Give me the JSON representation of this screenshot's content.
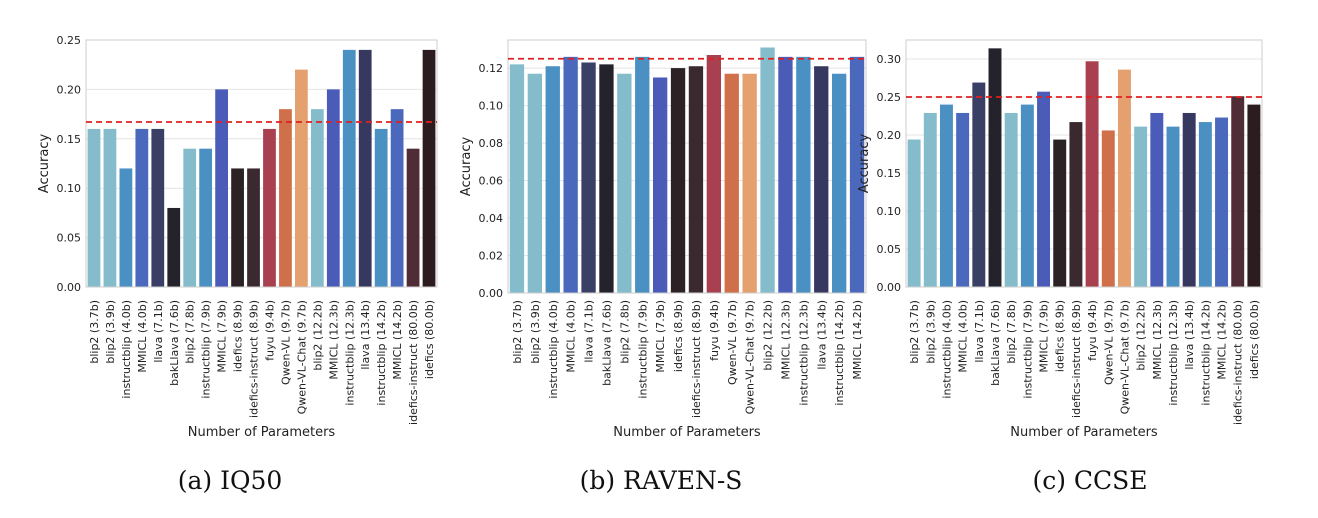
{
  "charts": [
    {
      "caption": "(a) IQ50",
      "type": "bar",
      "xlabel": "Number of Parameters",
      "ylabel": "Accuracy",
      "ylim": [
        0,
        0.25
      ],
      "yticks": [
        "0.00",
        "0.05",
        "0.10",
        "0.15",
        "0.20",
        "0.25"
      ],
      "baseline": 0.167,
      "categories": [
        "blip2 (3.7b)",
        "blip2 (3.9b)",
        "instructblip (4.0b)",
        "MMICL (4.0b)",
        "llava (7.1b)",
        "bakLlava (7.6b)",
        "blip2 (7.8b)",
        "instructblip (7.9b)",
        "MMICL (7.9b)",
        "idefics (8.9b)",
        "idefics-instruct (8.9b)",
        "fuyu (9.4b)",
        "Qwen-VL (9.7b)",
        "Qwen-VL-Chat (9.7b)",
        "blip2 (12.2b)",
        "MMICL (12.3b)",
        "instructblip (12.3b)",
        "llava (13.4b)",
        "instructblip (14.2b)",
        "MMICL (14.2b)",
        "idefics-instruct (80.0b)",
        "idefics (80.0b)"
      ],
      "values": [
        0.16,
        0.16,
        0.12,
        0.16,
        0.16,
        0.08,
        0.14,
        0.14,
        0.2,
        0.12,
        0.12,
        0.16,
        0.18,
        0.22,
        0.18,
        0.2,
        0.24,
        0.24,
        0.16,
        0.18,
        0.14,
        0.24
      ],
      "colors": [
        "#84bccc",
        "#84bccc",
        "#4a90c2",
        "#4a68bc",
        "#3a3f66",
        "#24222a",
        "#84bccc",
        "#4a90c2",
        "#4a5cb8",
        "#2c2226",
        "#3a2a30",
        "#a84050",
        "#d0704a",
        "#e5a070",
        "#84bccc",
        "#4a5cb8",
        "#4a90c2",
        "#363860",
        "#4a90c2",
        "#4a68bc",
        "#502c36",
        "#2c1c20"
      ]
    },
    {
      "caption": "(b) RAVEN-S",
      "type": "bar",
      "xlabel": "Number of Parameters",
      "ylabel": "Accuracy",
      "ylim": [
        0,
        0.135
      ],
      "yticks": [
        "0.00",
        "0.02",
        "0.04",
        "0.06",
        "0.08",
        "0.10",
        "0.12"
      ],
      "baseline": 0.125,
      "categories": [
        "blip2 (3.7b)",
        "blip2 (3.9b)",
        "instructblip (4.0b)",
        "MMICL (4.0b)",
        "llava (7.1b)",
        "bakLlava (7.6b)",
        "blip2 (7.8b)",
        "instructblip (7.9b)",
        "MMICL (7.9b)",
        "idefics (8.9b)",
        "idefics-instruct (8.9b)",
        "fuyu (9.4b)",
        "Qwen-VL (9.7b)",
        "Qwen-VL-Chat (9.7b)",
        "blip2 (12.2b)",
        "MMICL (12.3b)",
        "instructblip (12.3b)",
        "llava (13.4b)",
        "instructblip (14.2b)",
        "MMICL (14.2b)"
      ],
      "values": [
        0.122,
        0.117,
        0.121,
        0.126,
        0.123,
        0.122,
        0.117,
        0.126,
        0.115,
        0.12,
        0.121,
        0.127,
        0.117,
        0.117,
        0.131,
        0.126,
        0.126,
        0.121,
        0.117,
        0.126
      ],
      "colors": [
        "#84bccc",
        "#84bccc",
        "#4a90c2",
        "#4a68bc",
        "#3a3f66",
        "#24222a",
        "#84bccc",
        "#4a90c2",
        "#4a5cb8",
        "#2c2226",
        "#3a2a30",
        "#a84050",
        "#d0704a",
        "#e5a070",
        "#84bccc",
        "#4a5cb8",
        "#4a90c2",
        "#363860",
        "#4a90c2",
        "#4a68bc"
      ]
    },
    {
      "caption": "(c) CCSE",
      "type": "bar",
      "xlabel": "Number of Parameters",
      "ylabel": "Accuracy",
      "ylim": [
        0,
        0.325
      ],
      "yticks": [
        "0.00",
        "0.05",
        "0.10",
        "0.15",
        "0.20",
        "0.25",
        "0.30"
      ],
      "baseline": 0.25,
      "categories": [
        "blip2 (3.7b)",
        "blip2 (3.9b)",
        "instructblip (4.0b)",
        "MMICL (4.0b)",
        "llava (7.1b)",
        "bakLlava (7.6b)",
        "blip2 (7.8b)",
        "instructblip (7.9b)",
        "MMICL (7.9b)",
        "idefics (8.9b)",
        "idefics-instruct (8.9b)",
        "fuyu (9.4b)",
        "Qwen-VL (9.7b)",
        "Qwen-VL-Chat (9.7b)",
        "blip2 (12.2b)",
        "MMICL (12.3b)",
        "instructblip (12.3b)",
        "llava (13.4b)",
        "instructblip (14.2b)",
        "MMICL (14.2b)",
        "idefics-instruct (80.0b)",
        "idefics (80.0b)"
      ],
      "values": [
        0.194,
        0.229,
        0.24,
        0.229,
        0.269,
        0.314,
        0.229,
        0.24,
        0.257,
        0.194,
        0.217,
        0.297,
        0.206,
        0.286,
        0.211,
        0.229,
        0.211,
        0.229,
        0.217,
        0.223,
        0.251,
        0.24
      ],
      "colors": [
        "#84bccc",
        "#84bccc",
        "#4a90c2",
        "#4a68bc",
        "#3a3f66",
        "#24222a",
        "#84bccc",
        "#4a90c2",
        "#4a5cb8",
        "#2c2226",
        "#3a2a30",
        "#a84050",
        "#d0704a",
        "#e5a070",
        "#84bccc",
        "#4a5cb8",
        "#4a90c2",
        "#363860",
        "#4a90c2",
        "#4a68bc",
        "#502c36",
        "#2c1c20"
      ]
    }
  ]
}
